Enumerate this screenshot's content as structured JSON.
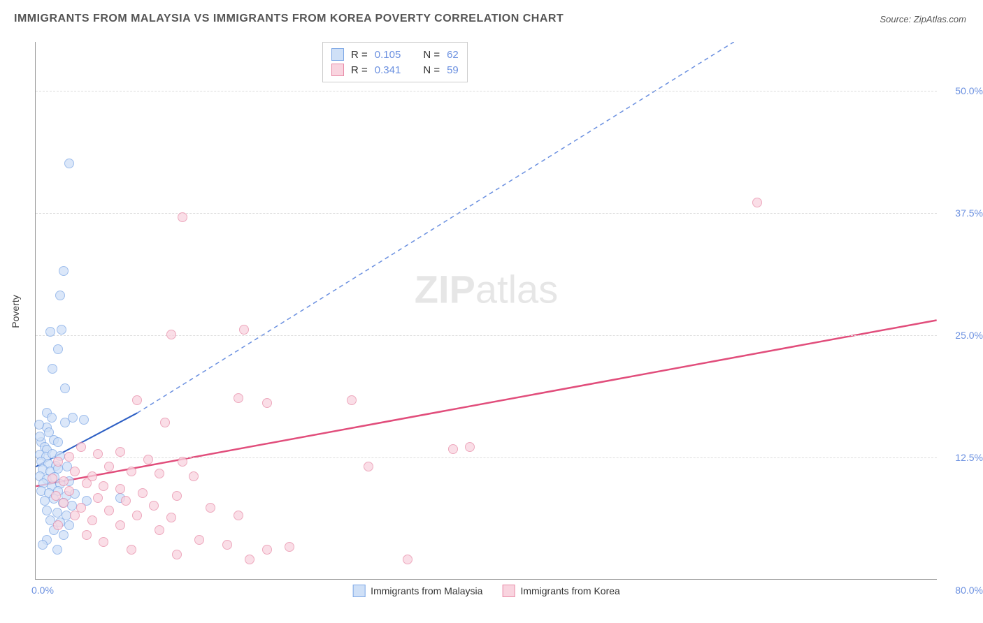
{
  "title": "IMMIGRANTS FROM MALAYSIA VS IMMIGRANTS FROM KOREA POVERTY CORRELATION CHART",
  "source_prefix": "Source: ",
  "source_name": "ZipAtlas.com",
  "ylabel": "Poverty",
  "watermark_bold": "ZIP",
  "watermark_rest": "atlas",
  "chart": {
    "type": "scatter",
    "xlim": [
      0,
      80
    ],
    "ylim": [
      0,
      55
    ],
    "xticks": [
      {
        "v": 0,
        "label": "0.0%"
      },
      {
        "v": 80,
        "label": "80.0%"
      }
    ],
    "yticks": [
      {
        "v": 12.5,
        "label": "12.5%"
      },
      {
        "v": 25,
        "label": "25.0%"
      },
      {
        "v": 37.5,
        "label": "37.5%"
      },
      {
        "v": 50,
        "label": "50.0%"
      }
    ],
    "grid_color": "#dddddd",
    "axis_color": "#999999",
    "background_color": "#ffffff",
    "tick_label_color": "#6b90e0",
    "series": [
      {
        "name": "Immigrants from Malaysia",
        "marker_fill": "#cfe0f7",
        "marker_stroke": "#7ea8e6",
        "swatch_fill": "#cfe0f7",
        "swatch_border": "#7ea8e6",
        "r_value": "0.105",
        "n_value": "62",
        "trend": {
          "x1": 0,
          "y1": 11.5,
          "x2": 9,
          "y2": 17,
          "dash_x2": 62,
          "dash_y2": 55,
          "solid_color": "#2d5fc4",
          "dash_color": "#6b90e0",
          "width": 2
        },
        "points": [
          {
            "x": 3.0,
            "y": 42.5
          },
          {
            "x": 2.5,
            "y": 31.5
          },
          {
            "x": 2.2,
            "y": 29.0
          },
          {
            "x": 2.3,
            "y": 25.5
          },
          {
            "x": 1.3,
            "y": 25.3
          },
          {
            "x": 2.0,
            "y": 23.5
          },
          {
            "x": 1.5,
            "y": 21.5
          },
          {
            "x": 2.6,
            "y": 19.5
          },
          {
            "x": 1.0,
            "y": 17.0
          },
          {
            "x": 1.4,
            "y": 16.5
          },
          {
            "x": 2.6,
            "y": 16.0
          },
          {
            "x": 1.0,
            "y": 15.5
          },
          {
            "x": 3.3,
            "y": 16.5
          },
          {
            "x": 4.3,
            "y": 16.3
          },
          {
            "x": 1.2,
            "y": 15.0
          },
          {
            "x": 0.5,
            "y": 14.0
          },
          {
            "x": 0.8,
            "y": 13.5
          },
          {
            "x": 1.6,
            "y": 14.2
          },
          {
            "x": 2.0,
            "y": 14.0
          },
          {
            "x": 1.0,
            "y": 13.2
          },
          {
            "x": 0.4,
            "y": 12.7
          },
          {
            "x": 0.9,
            "y": 12.5
          },
          {
            "x": 1.5,
            "y": 12.8
          },
          {
            "x": 2.2,
            "y": 12.6
          },
          {
            "x": 0.5,
            "y": 12.0
          },
          {
            "x": 1.1,
            "y": 11.8
          },
          {
            "x": 1.8,
            "y": 11.6
          },
          {
            "x": 0.6,
            "y": 11.2
          },
          {
            "x": 1.3,
            "y": 11.0
          },
          {
            "x": 2.0,
            "y": 11.3
          },
          {
            "x": 2.8,
            "y": 11.5
          },
          {
            "x": 0.4,
            "y": 10.5
          },
          {
            "x": 1.0,
            "y": 10.2
          },
          {
            "x": 1.7,
            "y": 10.4
          },
          {
            "x": 0.7,
            "y": 9.8
          },
          {
            "x": 1.4,
            "y": 9.5
          },
          {
            "x": 2.2,
            "y": 9.7
          },
          {
            "x": 3.0,
            "y": 10.0
          },
          {
            "x": 0.5,
            "y": 9.0
          },
          {
            "x": 1.2,
            "y": 8.8
          },
          {
            "x": 2.0,
            "y": 9.0
          },
          {
            "x": 2.7,
            "y": 8.5
          },
          {
            "x": 3.5,
            "y": 8.7
          },
          {
            "x": 0.8,
            "y": 8.0
          },
          {
            "x": 1.6,
            "y": 8.2
          },
          {
            "x": 2.4,
            "y": 7.8
          },
          {
            "x": 3.2,
            "y": 7.5
          },
          {
            "x": 4.5,
            "y": 8.0
          },
          {
            "x": 1.0,
            "y": 7.0
          },
          {
            "x": 1.9,
            "y": 6.8
          },
          {
            "x": 2.7,
            "y": 6.5
          },
          {
            "x": 1.3,
            "y": 6.0
          },
          {
            "x": 2.2,
            "y": 5.8
          },
          {
            "x": 3.0,
            "y": 5.5
          },
          {
            "x": 1.6,
            "y": 5.0
          },
          {
            "x": 2.5,
            "y": 4.5
          },
          {
            "x": 1.0,
            "y": 4.0
          },
          {
            "x": 0.6,
            "y": 3.5
          },
          {
            "x": 1.9,
            "y": 3.0
          },
          {
            "x": 7.5,
            "y": 8.3
          },
          {
            "x": 0.3,
            "y": 15.8
          },
          {
            "x": 0.4,
            "y": 14.6
          }
        ]
      },
      {
        "name": "Immigrants from Korea",
        "marker_fill": "#f9d4df",
        "marker_stroke": "#e88ca8",
        "swatch_fill": "#f9d4df",
        "swatch_border": "#e88ca8",
        "r_value": "0.341",
        "n_value": "59",
        "trend": {
          "x1": 0,
          "y1": 9.5,
          "x2": 80,
          "y2": 26.5,
          "solid_color": "#e14d7b",
          "width": 2.5
        },
        "points": [
          {
            "x": 64.0,
            "y": 38.5
          },
          {
            "x": 13.0,
            "y": 37.0
          },
          {
            "x": 18.5,
            "y": 25.5
          },
          {
            "x": 12.0,
            "y": 25.0
          },
          {
            "x": 28.0,
            "y": 18.3
          },
          {
            "x": 18.0,
            "y": 18.5
          },
          {
            "x": 20.5,
            "y": 18.0
          },
          {
            "x": 9.0,
            "y": 18.3
          },
          {
            "x": 11.5,
            "y": 16.0
          },
          {
            "x": 38.5,
            "y": 13.5
          },
          {
            "x": 37.0,
            "y": 13.3
          },
          {
            "x": 29.5,
            "y": 11.5
          },
          {
            "x": 13.0,
            "y": 12.0
          },
          {
            "x": 10.0,
            "y": 12.2
          },
          {
            "x": 7.5,
            "y": 13.0
          },
          {
            "x": 5.5,
            "y": 12.8
          },
          {
            "x": 4.0,
            "y": 13.5
          },
          {
            "x": 3.0,
            "y": 12.5
          },
          {
            "x": 2.0,
            "y": 12.0
          },
          {
            "x": 6.5,
            "y": 11.5
          },
          {
            "x": 8.5,
            "y": 11.0
          },
          {
            "x": 11.0,
            "y": 10.8
          },
          {
            "x": 14.0,
            "y": 10.5
          },
          {
            "x": 3.5,
            "y": 11.0
          },
          {
            "x": 5.0,
            "y": 10.5
          },
          {
            "x": 2.5,
            "y": 10.0
          },
          {
            "x": 1.5,
            "y": 10.3
          },
          {
            "x": 4.5,
            "y": 9.8
          },
          {
            "x": 6.0,
            "y": 9.5
          },
          {
            "x": 7.5,
            "y": 9.2
          },
          {
            "x": 9.5,
            "y": 8.8
          },
          {
            "x": 12.5,
            "y": 8.5
          },
          {
            "x": 3.0,
            "y": 9.0
          },
          {
            "x": 1.8,
            "y": 8.5
          },
          {
            "x": 5.5,
            "y": 8.3
          },
          {
            "x": 8.0,
            "y": 8.0
          },
          {
            "x": 10.5,
            "y": 7.5
          },
          {
            "x": 15.5,
            "y": 7.3
          },
          {
            "x": 2.5,
            "y": 7.8
          },
          {
            "x": 4.0,
            "y": 7.3
          },
          {
            "x": 6.5,
            "y": 7.0
          },
          {
            "x": 9.0,
            "y": 6.5
          },
          {
            "x": 12.0,
            "y": 6.3
          },
          {
            "x": 18.0,
            "y": 6.5
          },
          {
            "x": 3.5,
            "y": 6.5
          },
          {
            "x": 5.0,
            "y": 6.0
          },
          {
            "x": 7.5,
            "y": 5.5
          },
          {
            "x": 11.0,
            "y": 5.0
          },
          {
            "x": 14.5,
            "y": 4.0
          },
          {
            "x": 17.0,
            "y": 3.5
          },
          {
            "x": 20.5,
            "y": 3.0
          },
          {
            "x": 22.5,
            "y": 3.3
          },
          {
            "x": 4.5,
            "y": 4.5
          },
          {
            "x": 8.5,
            "y": 3.0
          },
          {
            "x": 12.5,
            "y": 2.5
          },
          {
            "x": 33.0,
            "y": 2.0
          },
          {
            "x": 19.0,
            "y": 2.0
          },
          {
            "x": 6.0,
            "y": 3.8
          },
          {
            "x": 2.0,
            "y": 5.5
          }
        ]
      }
    ],
    "r_label": "R = ",
    "n_label": "N = "
  }
}
